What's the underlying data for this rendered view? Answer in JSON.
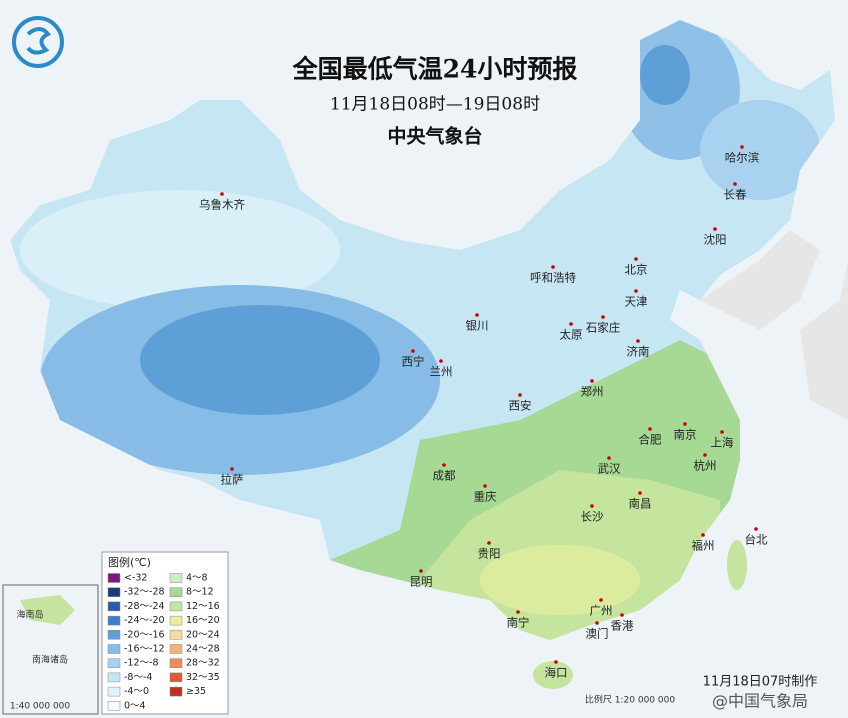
{
  "header": {
    "title": "全国最低气温24小时预报",
    "time_range": "11月18日08时—19日08时",
    "issuer": "中央气象台"
  },
  "cities": [
    "乌鲁木齐",
    "哈尔滨",
    "长春",
    "沈阳",
    "呼和浩特",
    "北京",
    "天津",
    "银川",
    "石家庄",
    "太原",
    "济南",
    "西宁",
    "兰州",
    "郑州",
    "西安",
    "合肥",
    "南京",
    "上海",
    "杭州",
    "成都",
    "重庆",
    "武汉",
    "拉萨",
    "南昌",
    "长沙",
    "贵阳",
    "福州",
    "台北",
    "昆明",
    "广州",
    "南宁",
    "澳门",
    "香港",
    "海口"
  ],
  "legend": {
    "title": "图例(℃)",
    "items": [
      {
        "label": "<-32",
        "color": "#7a1a7a"
      },
      {
        "label": "-32～-28",
        "color": "#1e3c7a"
      },
      {
        "label": "-28～-24",
        "color": "#2b5aa8"
      },
      {
        "label": "-24～-20",
        "color": "#3f7cc8"
      },
      {
        "label": "-20～-16",
        "color": "#5f9fd8"
      },
      {
        "label": "-16～-12",
        "color": "#86bce5"
      },
      {
        "label": "-12～-8",
        "color": "#a8d2ef"
      },
      {
        "label": "-8～-4",
        "color": "#c7e6f4"
      },
      {
        "label": "-4～0",
        "color": "#e0f3fa"
      },
      {
        "label": "0～4",
        "color": "#f2fbfd"
      },
      {
        "label": "4～8",
        "color": "#c8eec0"
      },
      {
        "label": "8～12",
        "color": "#a6d994"
      },
      {
        "label": "12～16",
        "color": "#c5e49d"
      },
      {
        "label": "16～20",
        "color": "#e8f0a0"
      },
      {
        "label": "20～24",
        "color": "#f7dca0"
      },
      {
        "label": "24～28",
        "color": "#f5b27a"
      },
      {
        "label": "28～32",
        "color": "#ef8a5a"
      },
      {
        "label": "32～35",
        "color": "#e05a30"
      },
      {
        "label": "≥35",
        "color": "#c03020"
      }
    ]
  },
  "inset": {
    "hainan": "海南岛",
    "islands": "南海诸岛",
    "scale": "1:40 000 000"
  },
  "footer": {
    "made": "11月18日07时制作",
    "scale": "比例尺 1:20 000 000",
    "watermark": "@中国气象局"
  }
}
